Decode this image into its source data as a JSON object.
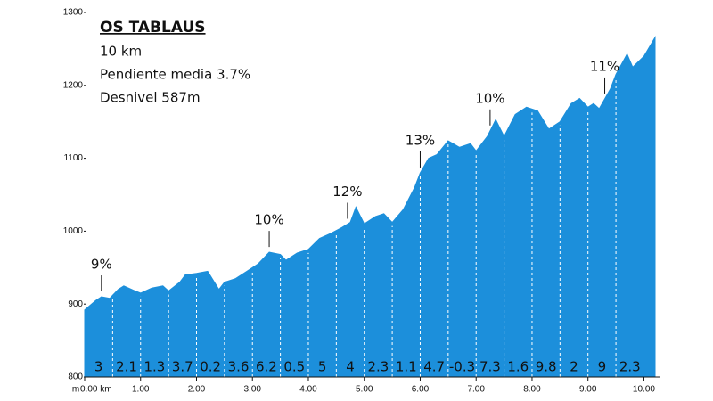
{
  "chart_data": {
    "type": "area",
    "title": "OS TABLAUS",
    "subtitle_lines": [
      "10 km",
      "Pendiente media 3.7%",
      "Desnivel 587m"
    ],
    "y_unit": "m",
    "color": "#1c8fdb",
    "x": [
      0,
      0.2,
      0.3,
      0.45,
      0.6,
      0.7,
      0.9,
      1.0,
      1.2,
      1.4,
      1.5,
      1.7,
      1.8,
      2.0,
      2.2,
      2.4,
      2.5,
      2.7,
      2.9,
      3.1,
      3.3,
      3.5,
      3.6,
      3.8,
      4.0,
      4.2,
      4.4,
      4.6,
      4.75,
      4.85,
      5.0,
      5.2,
      5.35,
      5.5,
      5.7,
      5.9,
      6.0,
      6.15,
      6.3,
      6.5,
      6.7,
      6.9,
      7.0,
      7.2,
      7.35,
      7.5,
      7.7,
      7.9,
      8.1,
      8.3,
      8.5,
      8.7,
      8.85,
      9.0,
      9.1,
      9.2,
      9.4,
      9.5,
      9.7,
      9.8,
      10.0,
      10.2
    ],
    "values": [
      892,
      905,
      910,
      908,
      920,
      925,
      918,
      915,
      922,
      925,
      918,
      930,
      940,
      942,
      945,
      920,
      930,
      935,
      945,
      955,
      971,
      968,
      960,
      970,
      975,
      990,
      997,
      1005,
      1012,
      1033,
      1010,
      1020,
      1024,
      1012,
      1030,
      1060,
      1080,
      1100,
      1105,
      1124,
      1115,
      1120,
      1110,
      1130,
      1153,
      1130,
      1160,
      1170,
      1165,
      1140,
      1150,
      1175,
      1182,
      1170,
      1175,
      1168,
      1195,
      1215,
      1243,
      1225,
      1240,
      1266
    ],
    "segments": [
      3,
      2.1,
      1.3,
      3.7,
      0.2,
      3.6,
      6.2,
      0.5,
      5,
      4,
      2.3,
      1.1,
      4.7,
      -0.3,
      7.3,
      1.6,
      9.8,
      2,
      9,
      2.3
    ],
    "annotations": [
      {
        "label": "9%",
        "x": 0.3
      },
      {
        "label": "10%",
        "x": 3.3
      },
      {
        "label": "12%",
        "x": 4.7
      },
      {
        "label": "13%",
        "x": 6.0
      },
      {
        "label": "10%",
        "x": 7.25
      },
      {
        "label": "11%",
        "x": 9.3
      }
    ],
    "xlim": [
      0,
      10.2
    ],
    "ylim": [
      800,
      1300
    ],
    "xticks": [
      {
        "value": 0,
        "label": "0.00 km"
      },
      {
        "value": 1,
        "label": "1.00"
      },
      {
        "value": 2,
        "label": "2.00"
      },
      {
        "value": 3,
        "label": "3.00"
      },
      {
        "value": 4,
        "label": "4.00"
      },
      {
        "value": 5,
        "label": "5.00"
      },
      {
        "value": 6,
        "label": "6.00"
      },
      {
        "value": 7,
        "label": "7.00"
      },
      {
        "value": 8,
        "label": "8.00"
      },
      {
        "value": 9,
        "label": "9.00"
      },
      {
        "value": 10,
        "label": "10.00"
      }
    ],
    "yticks": [
      800,
      900,
      1000,
      1100,
      1200,
      1300
    ]
  }
}
